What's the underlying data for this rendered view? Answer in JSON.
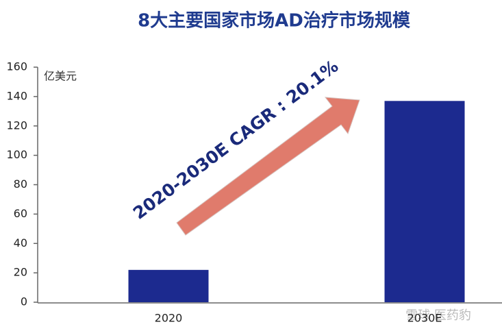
{
  "chart_data": {
    "type": "bar",
    "title": "8大主要国家市场AD治疗市场规模",
    "y_label": "亿美元",
    "annotation": "2020-2030E CAGR : 20.1%",
    "watermark": "雪球 医药豹",
    "categories": [
      "2020",
      "2030E"
    ],
    "values": [
      22,
      137
    ],
    "color": "#1c2a8f",
    "ylim": [
      0,
      160
    ],
    "yticks": [
      0,
      20,
      40,
      60,
      80,
      100,
      120,
      140,
      160
    ],
    "grid": false
  }
}
